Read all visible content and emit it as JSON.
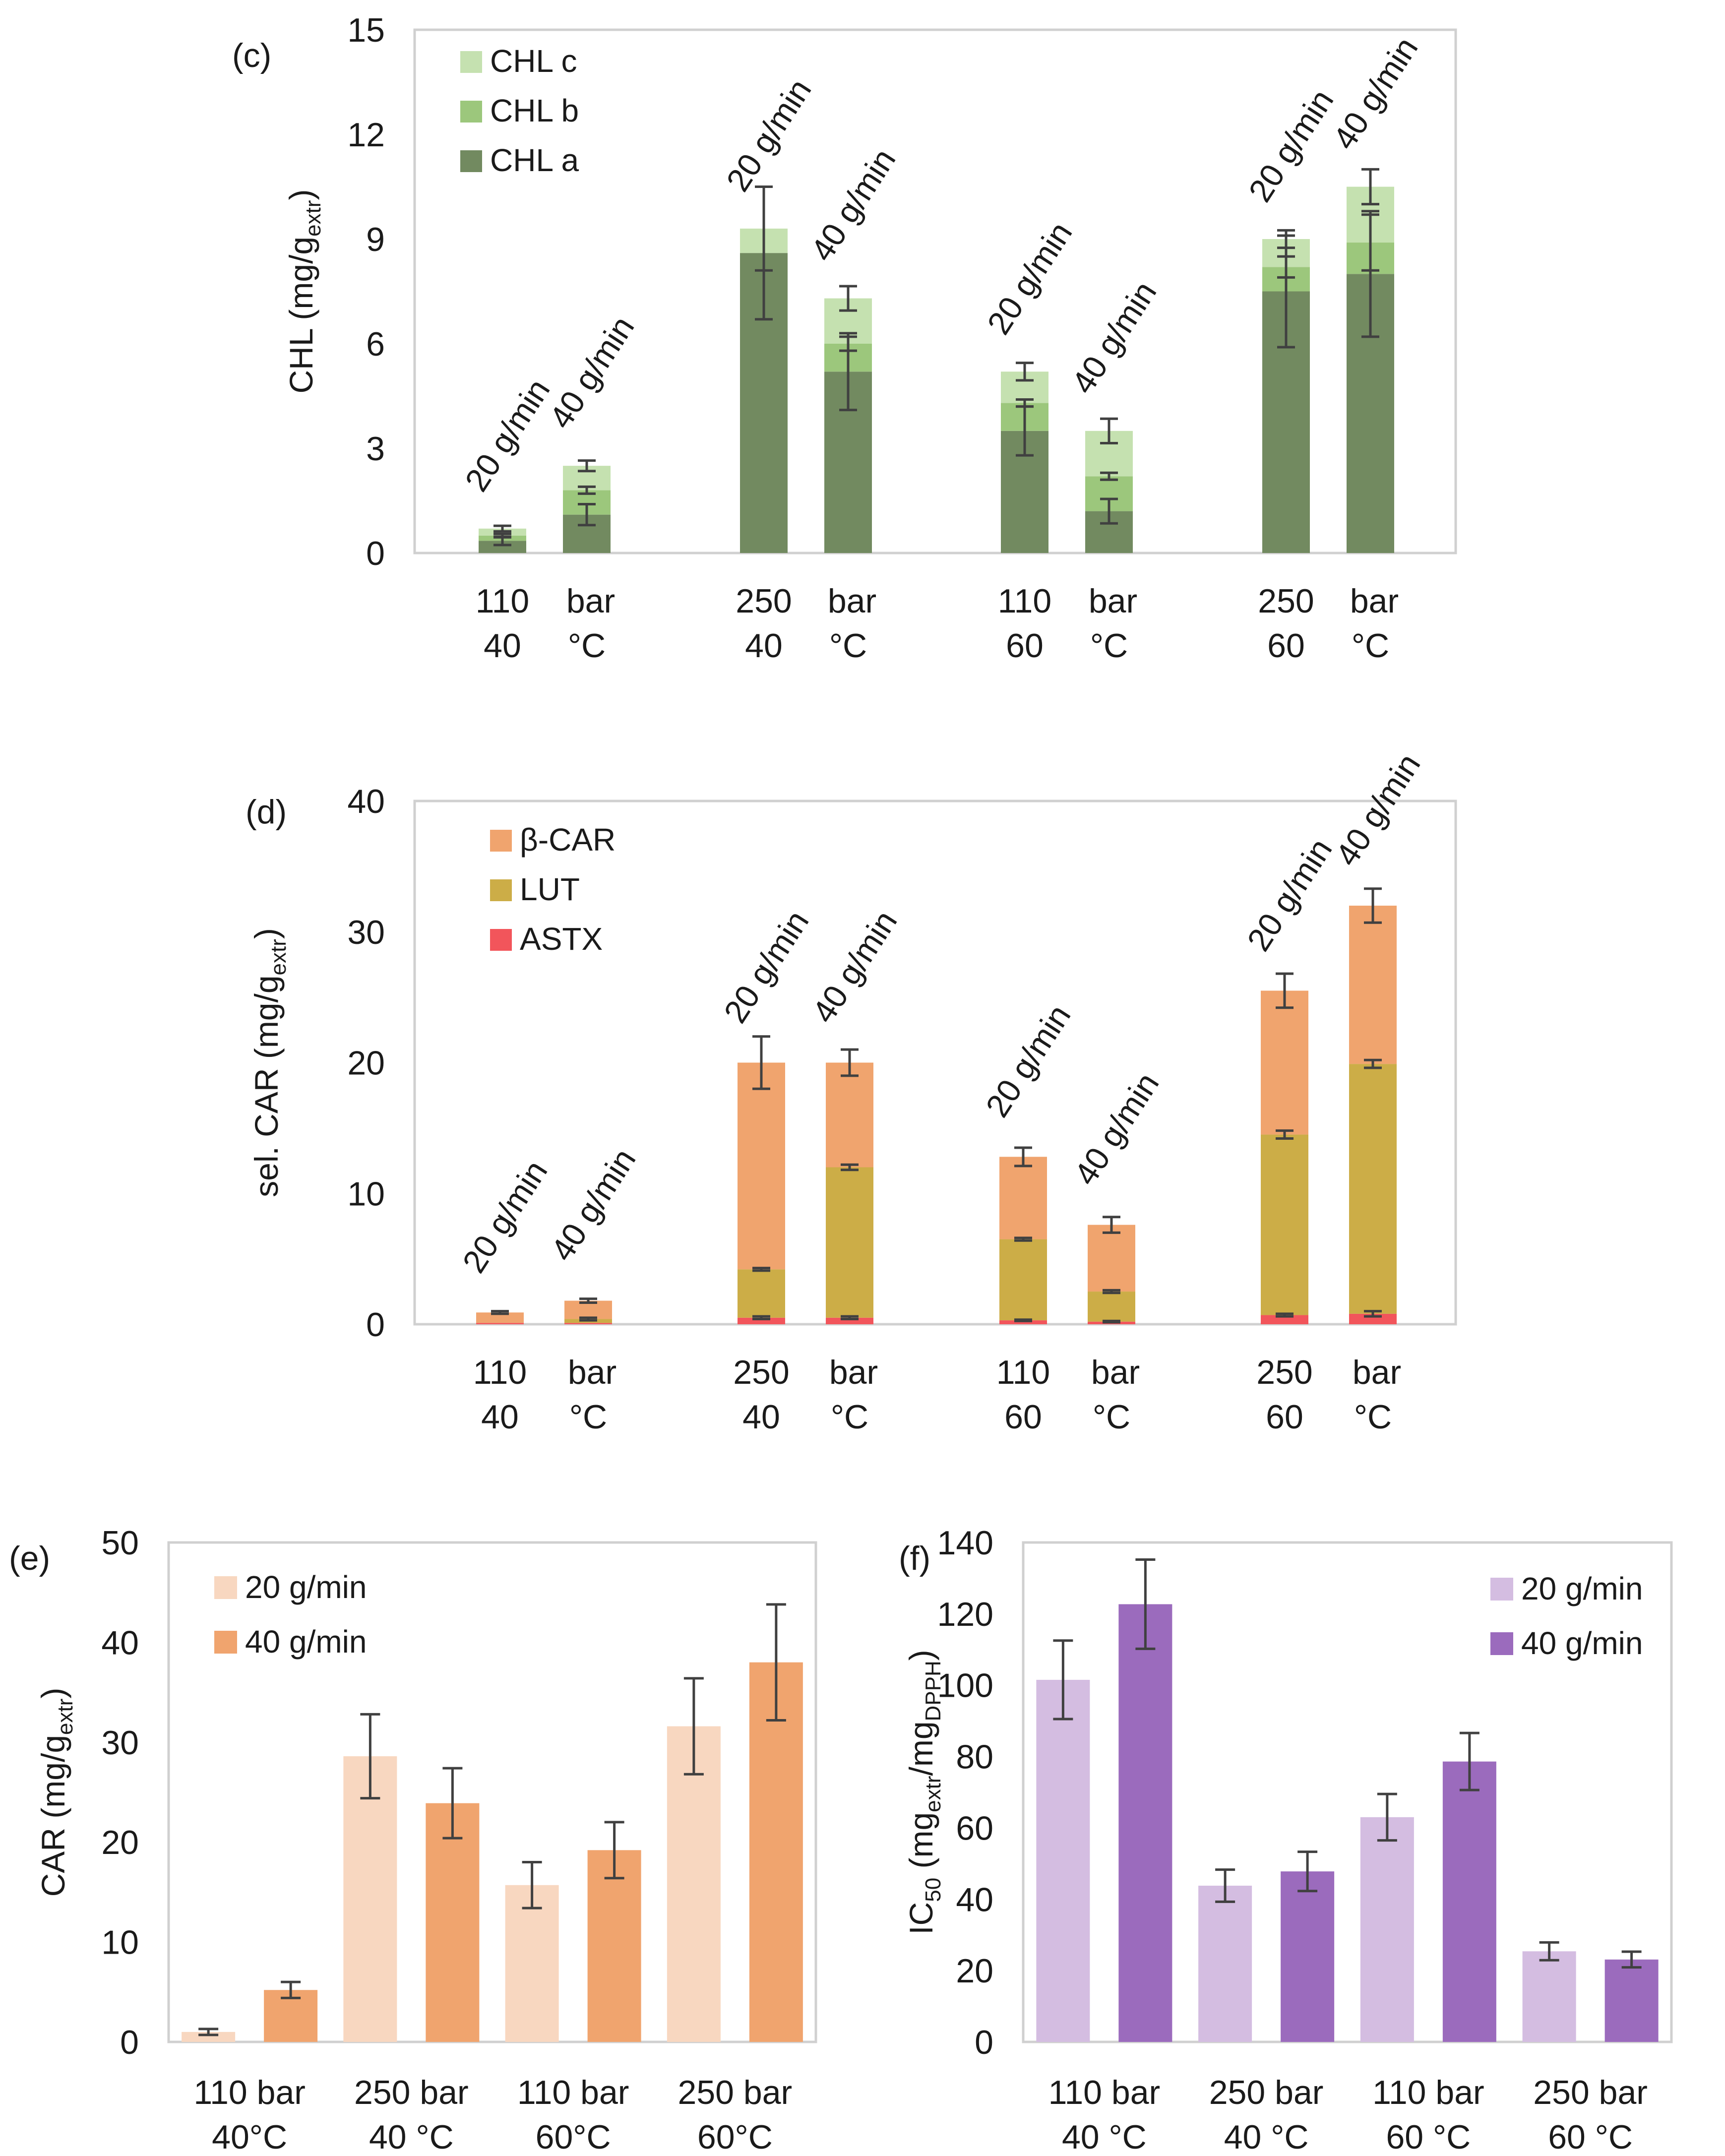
{
  "colors": {
    "chl_a": "#728a60",
    "chl_b": "#9cc77c",
    "chl_c": "#c5e1b0",
    "beta_car": "#f0a46e",
    "lut": "#ccad47",
    "astx": "#f2555b",
    "car_20": "#f8d7c0",
    "car_40": "#f0a46e",
    "ic_20": "#d4bde1",
    "ic_40": "#9b6bbd",
    "axis": "#d0d0d0",
    "text": "#1a1a1a",
    "error": "#404040"
  },
  "chart_data": [
    {
      "id": "c",
      "panel_label": "(c)",
      "type": "stacked-bar",
      "ylabel_main": "CHL (mg/g",
      "ylabel_sub": "extr",
      "ylabel_end": ")",
      "ylim": [
        0,
        15
      ],
      "yticks": [
        0,
        3,
        6,
        9,
        12,
        15
      ],
      "ytick_labels": [
        "0",
        "3",
        "6",
        "9",
        "12",
        "15"
      ],
      "group_labels": [
        [
          "110",
          "bar",
          "40",
          "°C"
        ],
        [
          "250",
          "bar",
          "40",
          "°C"
        ],
        [
          "110",
          "bar",
          "60",
          "°C"
        ],
        [
          "250",
          "bar",
          "60",
          "°C"
        ]
      ],
      "bar_labels": [
        "20 g/min",
        "40 g/min"
      ],
      "series": [
        {
          "name": "CHL a",
          "color_key": "chl_a"
        },
        {
          "name": "CHL b",
          "color_key": "chl_b"
        },
        {
          "name": "CHL c",
          "color_key": "chl_c"
        }
      ],
      "legend_order": [
        "CHL c",
        "CHL b",
        "CHL a"
      ],
      "legend_position": "top-left",
      "bars": [
        {
          "values": [
            0.35,
            0.15,
            0.2
          ],
          "errors": [
            0.12,
            0.05,
            0.08
          ]
        },
        {
          "values": [
            1.1,
            0.7,
            0.7
          ],
          "errors": [
            0.3,
            0.1,
            0.15
          ]
        },
        {
          "values": [
            8.6,
            0.0,
            0.7
          ],
          "errors": [
            1.9,
            0.0,
            1.2
          ]
        },
        {
          "values": [
            5.2,
            0.8,
            1.3
          ],
          "errors": [
            1.1,
            0.2,
            0.35
          ]
        },
        {
          "values": [
            3.5,
            0.8,
            0.9
          ],
          "errors": [
            0.7,
            0.1,
            0.25
          ]
        },
        {
          "values": [
            1.2,
            1.0,
            1.3
          ],
          "errors": [
            0.35,
            0.1,
            0.35
          ]
        },
        {
          "values": [
            7.5,
            0.7,
            0.8
          ],
          "errors": [
            1.6,
            0.3,
            0.25
          ]
        },
        {
          "values": [
            8.0,
            0.9,
            1.6
          ],
          "errors": [
            1.8,
            0.8,
            0.5
          ]
        }
      ]
    },
    {
      "id": "d",
      "panel_label": "(d)",
      "type": "stacked-bar",
      "ylabel_main": "sel. CAR (mg/g",
      "ylabel_sub": "extr",
      "ylabel_end": ")",
      "ylim": [
        0,
        40
      ],
      "yticks": [
        0,
        10,
        20,
        30,
        40
      ],
      "ytick_labels": [
        "0",
        "10",
        "20",
        "30",
        "40"
      ],
      "group_labels": [
        [
          "110",
          "bar",
          "40",
          "°C"
        ],
        [
          "250",
          "bar",
          "40",
          "°C"
        ],
        [
          "110",
          "bar",
          "60",
          "°C"
        ],
        [
          "250",
          "bar",
          "60",
          "°C"
        ]
      ],
      "bar_labels": [
        "20 g/min",
        "40 g/min"
      ],
      "series": [
        {
          "name": "ASTX",
          "color_key": "astx"
        },
        {
          "name": "LUT",
          "color_key": "lut"
        },
        {
          "name": "β-CAR",
          "color_key": "beta_car"
        }
      ],
      "legend_order": [
        "β-CAR",
        "LUT",
        "ASTX"
      ],
      "legend_position": "top-left",
      "bars": [
        {
          "values": [
            0.1,
            0.0,
            0.8
          ],
          "errors": [
            0.0,
            0.0,
            0.1
          ]
        },
        {
          "values": [
            0.1,
            0.3,
            1.4
          ],
          "errors": [
            0.0,
            0.1,
            0.15
          ]
        },
        {
          "values": [
            0.5,
            3.7,
            15.8
          ],
          "errors": [
            0.1,
            0.1,
            2.0
          ]
        },
        {
          "values": [
            0.5,
            11.5,
            8.0
          ],
          "errors": [
            0.1,
            0.2,
            1.0
          ]
        },
        {
          "values": [
            0.3,
            6.2,
            6.3
          ],
          "errors": [
            0.05,
            0.1,
            0.7
          ]
        },
        {
          "values": [
            0.2,
            2.3,
            5.1
          ],
          "errors": [
            0.05,
            0.1,
            0.6
          ]
        },
        {
          "values": [
            0.7,
            13.8,
            11.0
          ],
          "errors": [
            0.1,
            0.3,
            1.3
          ]
        },
        {
          "values": [
            0.8,
            19.1,
            12.1
          ],
          "errors": [
            0.2,
            0.3,
            1.3
          ]
        }
      ]
    },
    {
      "id": "e",
      "panel_label": "(e)",
      "type": "bar",
      "ylabel_main": "CAR (mg/g",
      "ylabel_sub": "extr",
      "ylabel_end": ")",
      "ylim": [
        0,
        50
      ],
      "yticks": [
        0,
        10,
        20,
        30,
        40,
        50
      ],
      "ytick_labels": [
        "0",
        "10",
        "20",
        "30",
        "40",
        "50"
      ],
      "categories": [
        [
          "110 bar",
          "40°C"
        ],
        [
          "250 bar",
          "40 °C"
        ],
        [
          "110 bar",
          "60°C"
        ],
        [
          "250 bar",
          "60°C"
        ]
      ],
      "legend_position": "top-left",
      "series": [
        {
          "name": "20 g/min",
          "color_key": "car_20",
          "values": [
            1.0,
            28.6,
            15.7,
            31.6
          ],
          "errors": [
            0.3,
            4.2,
            2.3,
            4.8
          ]
        },
        {
          "name": "40 g/min",
          "color_key": "car_40",
          "values": [
            5.2,
            23.9,
            19.2,
            38.0
          ],
          "errors": [
            0.8,
            3.5,
            2.8,
            5.8
          ]
        }
      ]
    },
    {
      "id": "f",
      "panel_label": "(f)",
      "type": "bar",
      "ylabel_main": "IC",
      "ylabel_sub1": "50",
      "ylabel_mid": " (mg",
      "ylabel_sub2": "extr",
      "ylabel_mid2": "/mg",
      "ylabel_sub3": "DPPH",
      "ylabel_end": ")",
      "ylim": [
        0,
        140
      ],
      "yticks": [
        0,
        20,
        40,
        60,
        80,
        100,
        120,
        140
      ],
      "ytick_labels": [
        "0",
        "20",
        "40",
        "60",
        "80",
        "100",
        "120",
        "140"
      ],
      "categories": [
        [
          "110 bar",
          "40  °C"
        ],
        [
          "250 bar",
          "40  °C"
        ],
        [
          "110 bar",
          "60  °C"
        ],
        [
          "250 bar",
          "60  °C"
        ]
      ],
      "legend_position": "top-right",
      "series": [
        {
          "name": "20 g/min",
          "color_key": "ic_20",
          "values": [
            101.5,
            43.8,
            63.0,
            25.4
          ],
          "errors": [
            11.0,
            4.5,
            6.5,
            2.5
          ]
        },
        {
          "name": "40 g/min",
          "color_key": "ic_40",
          "values": [
            122.7,
            47.8,
            78.6,
            23.1
          ],
          "errors": [
            12.5,
            5.5,
            8.0,
            2.2
          ]
        }
      ]
    }
  ]
}
